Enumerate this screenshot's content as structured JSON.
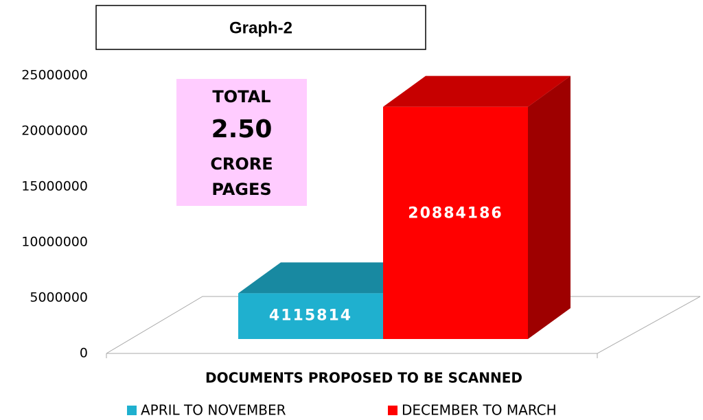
{
  "chart_data": {
    "type": "bar3d",
    "title": "Graph-2",
    "xlabel": "DOCUMENTS PROPOSED TO BE SCANNED",
    "annotation": [
      "TOTAL",
      "2.50",
      "CRORE",
      "PAGES"
    ],
    "series": [
      {
        "name": "APRIL TO NOVEMBER",
        "color": "#1fb0cf",
        "values": [
          4115814
        ]
      },
      {
        "name": "DECEMBER TO MARCH",
        "color": "#ff0000",
        "values": [
          20884186
        ]
      }
    ],
    "ylim": [
      0,
      25000000
    ],
    "yticks": [
      0,
      5000000,
      10000000,
      15000000,
      20000000,
      25000000
    ]
  }
}
